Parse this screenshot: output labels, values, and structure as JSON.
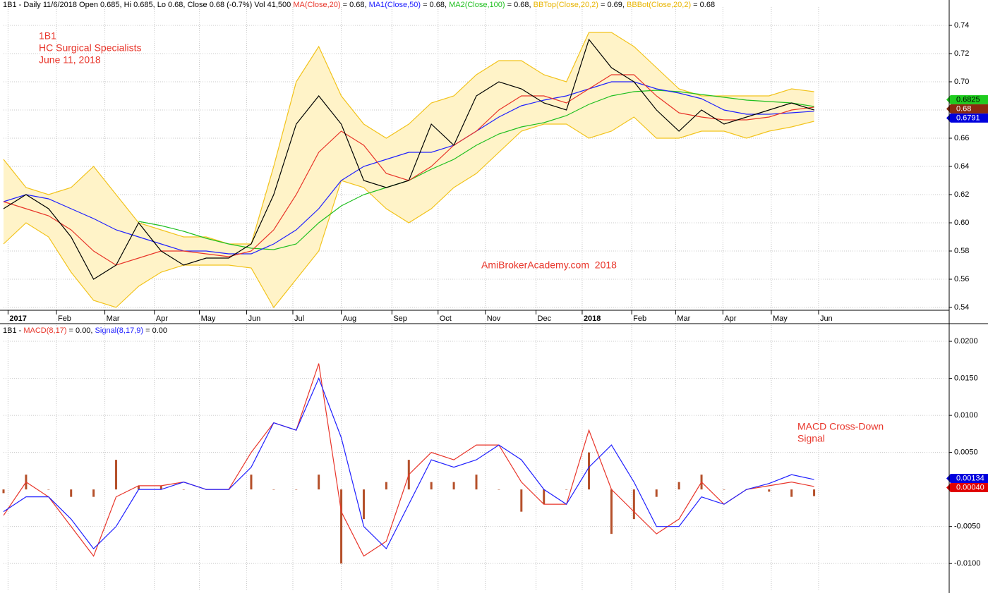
{
  "chart_data": [
    {
      "type": "line",
      "header": [
        {
          "text": "1B1 - Daily 11/6/2018 Open 0.685, Hi 0.685, Lo 0.68, Close 0.68 (-0.7%) Vol 41,500 ",
          "color": "#000000"
        },
        {
          "text": "MA(Close,20)",
          "color": "#e8352a"
        },
        {
          "text": " = 0.68, ",
          "color": "#000000"
        },
        {
          "text": "MA1(Close,50)",
          "color": "#2020ff"
        },
        {
          "text": " = 0.68, ",
          "color": "#000000"
        },
        {
          "text": "MA2(Close,100)",
          "color": "#1fbf1f"
        },
        {
          "text": " = 0.68, ",
          "color": "#000000"
        },
        {
          "text": "BBTop(Close,20,2)",
          "color": "#e8b400"
        },
        {
          "text": " = 0.69, ",
          "color": "#000000"
        },
        {
          "text": "BBBot(Close,20,2)",
          "color": "#e8b400"
        },
        {
          "text": " = 0.68",
          "color": "#000000"
        }
      ],
      "annotations": [
        "1B1",
        "HC Surgical Specialists",
        "June 11, 2018",
        "AmiBrokerAcademy.com  2018"
      ],
      "x": [
        0,
        2,
        4,
        6,
        8,
        10,
        12,
        14,
        16,
        18,
        20,
        22,
        24,
        26,
        28,
        30,
        32,
        34,
        36,
        38,
        40,
        42,
        44,
        46,
        48,
        50,
        52,
        54,
        56,
        58,
        60,
        62,
        64,
        66,
        68,
        70,
        72
      ],
      "xlim": [
        0,
        84
      ],
      "xticks": [
        {
          "value": 0.4,
          "label": "2017"
        },
        {
          "value": 4.7,
          "label": "Feb"
        },
        {
          "value": 9,
          "label": "Mar"
        },
        {
          "value": 13.4,
          "label": "Apr"
        },
        {
          "value": 17.4,
          "label": "May"
        },
        {
          "value": 21.6,
          "label": "Jun"
        },
        {
          "value": 25.7,
          "label": "Jul"
        },
        {
          "value": 30,
          "label": "Aug"
        },
        {
          "value": 34.5,
          "label": "Sep"
        },
        {
          "value": 38.6,
          "label": "Oct"
        },
        {
          "value": 42.8,
          "label": "Nov"
        },
        {
          "value": 47.3,
          "label": "Dec"
        },
        {
          "value": 51.4,
          "label": "2018"
        },
        {
          "value": 55.8,
          "label": "Feb"
        },
        {
          "value": 59.7,
          "label": "Mar"
        },
        {
          "value": 63.9,
          "label": "Apr"
        },
        {
          "value": 68.2,
          "label": "May"
        },
        {
          "value": 72.4,
          "label": "Jun"
        }
      ],
      "ylim": [
        0.538,
        0.748
      ],
      "yticks": [
        0.54,
        0.56,
        0.58,
        {
          "value": 0.6,
          "label": "0.60"
        },
        0.62,
        0.64,
        0.66,
        0.68,
        {
          "value": 0.7,
          "label": "0.70"
        },
        0.72,
        0.74
      ],
      "grid": true,
      "series": [
        {
          "type": "band",
          "color": "#f2c31b",
          "fill": "#fff3c8",
          "values": [
            0.645,
            0.625,
            0.62,
            0.625,
            0.64,
            0.62,
            0.6,
            0.595,
            0.59,
            0.59,
            0.585,
            0.585,
            0.64,
            0.7,
            0.725,
            0.69,
            0.67,
            0.66,
            0.67,
            0.685,
            0.69,
            0.705,
            0.715,
            0.715,
            0.705,
            0.7,
            0.735,
            0.735,
            0.725,
            0.71,
            0.695,
            0.69,
            0.69,
            0.69,
            0.69,
            0.695,
            0.693
          ]
        },
        {
          "type": "line",
          "color": "#f2c31b",
          "values": [
            0.585,
            0.6,
            0.59,
            0.565,
            0.545,
            0.54,
            0.555,
            0.565,
            0.57,
            0.57,
            0.57,
            0.568,
            0.54,
            0.56,
            0.58,
            0.63,
            0.625,
            0.61,
            0.6,
            0.61,
            0.625,
            0.635,
            0.65,
            0.665,
            0.67,
            0.67,
            0.66,
            0.665,
            0.675,
            0.66,
            0.66,
            0.665,
            0.665,
            0.66,
            0.665,
            0.668,
            0.672
          ]
        },
        {
          "type": "line",
          "color": "#1fbf1f",
          "flag_color": "#1fcc1f",
          "flag_text": "#000000",
          "values": [
            null,
            null,
            null,
            null,
            null,
            null,
            0.601,
            0.598,
            0.594,
            0.589,
            0.585,
            0.582,
            0.581,
            0.585,
            0.6,
            0.612,
            0.62,
            0.625,
            0.63,
            0.638,
            0.645,
            0.655,
            0.663,
            0.668,
            0.671,
            0.676,
            0.684,
            0.69,
            0.693,
            0.694,
            0.693,
            0.691,
            0.689,
            0.687,
            0.686,
            0.685,
            0.6825
          ]
        },
        {
          "type": "line",
          "color": "#2020ff",
          "flag_color": "#0000dd",
          "flag_text": "#ffffff",
          "values": [
            0.615,
            0.62,
            0.617,
            0.61,
            0.603,
            0.595,
            0.59,
            0.585,
            0.58,
            0.58,
            0.578,
            0.578,
            0.585,
            0.595,
            0.61,
            0.63,
            0.64,
            0.645,
            0.65,
            0.65,
            0.655,
            0.665,
            0.675,
            0.683,
            0.687,
            0.69,
            0.695,
            0.7,
            0.7,
            0.695,
            0.692,
            0.688,
            0.68,
            0.677,
            0.677,
            0.678,
            0.6791
          ]
        },
        {
          "type": "line",
          "color": "#e8352a",
          "values": [
            0.615,
            0.61,
            0.605,
            0.595,
            0.58,
            0.57,
            0.575,
            0.58,
            0.58,
            0.578,
            0.576,
            0.58,
            0.595,
            0.62,
            0.65,
            0.665,
            0.655,
            0.635,
            0.63,
            0.64,
            0.655,
            0.665,
            0.68,
            0.69,
            0.69,
            0.685,
            0.695,
            0.705,
            0.705,
            0.69,
            0.678,
            0.675,
            0.673,
            0.673,
            0.675,
            0.68,
            0.682
          ]
        },
        {
          "type": "line",
          "color": "#000000",
          "flag_color": "#8b2a10",
          "flag_text": "#ffffff",
          "values": [
            0.61,
            0.62,
            0.61,
            0.59,
            0.56,
            0.57,
            0.6,
            0.58,
            0.57,
            0.575,
            0.575,
            0.585,
            0.62,
            0.67,
            0.69,
            0.67,
            0.63,
            0.625,
            0.63,
            0.67,
            0.655,
            0.69,
            0.7,
            0.695,
            0.685,
            0.68,
            0.73,
            0.71,
            0.7,
            0.68,
            0.665,
            0.68,
            0.67,
            0.675,
            0.68,
            0.685,
            0.68
          ]
        }
      ]
    },
    {
      "type": "line",
      "header": [
        {
          "text": "1B1 - ",
          "color": "#000000"
        },
        {
          "text": "MACD(8,17)",
          "color": "#e8352a"
        },
        {
          "text": " = 0.00, ",
          "color": "#000000"
        },
        {
          "text": "Signal(8,17,9)",
          "color": "#2020ff"
        },
        {
          "text": " = 0.00",
          "color": "#000000"
        }
      ],
      "annotations": [
        "MACD Cross-Down",
        "Signal"
      ],
      "x": [
        0,
        2,
        4,
        6,
        8,
        10,
        12,
        14,
        16,
        18,
        20,
        22,
        24,
        26,
        28,
        30,
        32,
        34,
        36,
        38,
        40,
        42,
        44,
        46,
        48,
        50,
        52,
        54,
        56,
        58,
        60,
        62,
        64,
        66,
        68,
        70,
        72
      ],
      "xlim": [
        0,
        84
      ],
      "ylim": [
        -0.0136,
        0.0221
      ],
      "yticks": [
        {
          "value": -0.01,
          "label": "-0.0100"
        },
        {
          "value": -0.005,
          "label": "-0.0050"
        },
        {
          "value": 0.005,
          "label": "0.0050"
        },
        {
          "value": 0.01,
          "label": "0.0100"
        },
        {
          "value": 0.015,
          "label": "0.0150"
        },
        {
          "value": 0.02,
          "label": "0.0200"
        }
      ],
      "grid": true,
      "series": [
        {
          "type": "bar",
          "color": "#b5502a",
          "values": [
            -0.0005,
            0.002,
            0,
            -0.001,
            -0.001,
            0.004,
            0.0005,
            0.0005,
            0,
            0,
            0,
            0.002,
            0,
            0,
            0.002,
            -0.01,
            -0.004,
            0.001,
            0.004,
            0.001,
            0.001,
            0.002,
            0,
            -0.003,
            -0.002,
            0,
            0.005,
            -0.006,
            -0.004,
            -0.001,
            0.001,
            0.002,
            0,
            0,
            -0.0003,
            -0.001,
            -0.0009
          ]
        },
        {
          "type": "line",
          "color": "#e8352a",
          "flag_color": "#e00000",
          "flag_text": "#ffffff",
          "last_label": "0.00040",
          "values": [
            -0.0035,
            0.001,
            -0.001,
            -0.005,
            -0.009,
            -0.001,
            0.0005,
            0.0005,
            0.001,
            0,
            0,
            0.005,
            0.009,
            0.008,
            0.017,
            -0.003,
            -0.009,
            -0.007,
            0.002,
            0.005,
            0.004,
            0.006,
            0.006,
            0.001,
            -0.002,
            -0.002,
            0.008,
            0,
            -0.003,
            -0.006,
            -0.004,
            0.001,
            -0.002,
            0,
            0.0005,
            0.001,
            0.0004
          ]
        },
        {
          "type": "line",
          "color": "#2020ff",
          "flag_color": "#0000dd",
          "flag_text": "#ffffff",
          "values": [
            -0.003,
            -0.001,
            -0.001,
            -0.004,
            -0.008,
            -0.005,
            0,
            0,
            0.001,
            0,
            0,
            0.003,
            0.009,
            0.008,
            0.015,
            0.007,
            -0.005,
            -0.008,
            -0.002,
            0.004,
            0.003,
            0.004,
            0.006,
            0.004,
            0,
            -0.002,
            0.003,
            0.006,
            0.001,
            -0.005,
            -0.005,
            -0.001,
            -0.002,
            0,
            0.0008,
            0.002,
            0.00134
          ]
        }
      ]
    }
  ]
}
